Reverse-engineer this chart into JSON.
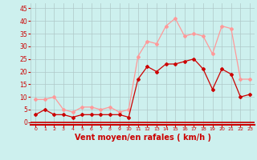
{
  "x": [
    0,
    1,
    2,
    3,
    4,
    5,
    6,
    7,
    8,
    9,
    10,
    11,
    12,
    13,
    14,
    15,
    16,
    17,
    18,
    19,
    20,
    21,
    22,
    23
  ],
  "wind_mean": [
    3,
    5,
    3,
    3,
    2,
    3,
    3,
    3,
    3,
    3,
    2,
    17,
    22,
    20,
    23,
    23,
    24,
    25,
    21,
    13,
    21,
    19,
    10,
    11
  ],
  "wind_gust": [
    9,
    9,
    10,
    5,
    4,
    6,
    6,
    5,
    6,
    4,
    5,
    26,
    32,
    31,
    38,
    41,
    34,
    35,
    34,
    27,
    38,
    37,
    17,
    17
  ],
  "bg_color": "#cdf0ee",
  "grid_color": "#b0c8c8",
  "mean_color": "#cc0000",
  "gust_color": "#ff9999",
  "tick_color": "#cc0000",
  "xlabel": "Vent moyen/en rafales ( km/h )",
  "xlabel_color": "#cc0000",
  "xlabel_fontsize": 7,
  "ylabel_ticks": [
    0,
    5,
    10,
    15,
    20,
    25,
    30,
    35,
    40,
    45
  ],
  "ylim": [
    -1,
    47
  ],
  "xlim": [
    -0.5,
    23.5
  ]
}
